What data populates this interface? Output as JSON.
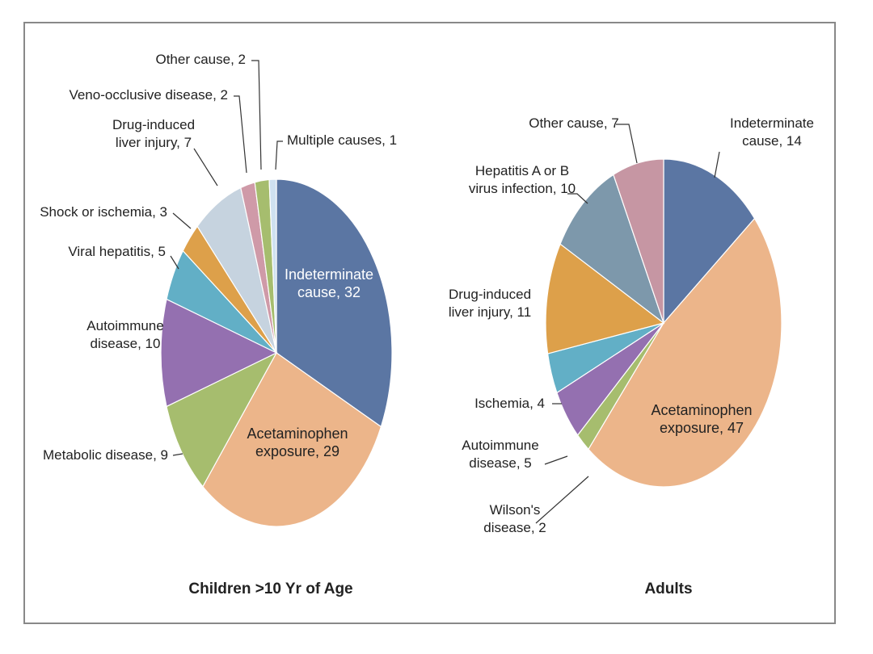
{
  "chart_data": [
    {
      "type": "pie",
      "title": "Children >10 Yr of Age",
      "slices": [
        {
          "label": "Indeterminate cause",
          "value": 32,
          "color": "#5b76a3",
          "text": "Indeterminate\ncause, 32"
        },
        {
          "label": "Acetaminophen exposure",
          "value": 29,
          "color": "#ecb58a",
          "text": "Acetaminophen\nexposure, 29"
        },
        {
          "label": "Metabolic disease",
          "value": 9,
          "color": "#a6bd6e",
          "text": "Metabolic disease, 9"
        },
        {
          "label": "Autoimmune disease",
          "value": 10,
          "color": "#9470b0",
          "text": "Autoimmune\ndisease, 10"
        },
        {
          "label": "Viral hepatitis",
          "value": 5,
          "color": "#62afc6",
          "text": "Viral hepatitis, 5"
        },
        {
          "label": "Shock or ischemia",
          "value": 3,
          "color": "#dda04a",
          "text": "Shock or ischemia, 3"
        },
        {
          "label": "Drug-induced liver injury",
          "value": 7,
          "color": "#c6d3df",
          "text": "Drug-induced\nliver injury, 7"
        },
        {
          "label": "Veno-occlusive disease",
          "value": 2,
          "color": "#cf9aa8",
          "text": "Veno-occlusive disease, 2"
        },
        {
          "label": "Other cause",
          "value": 2,
          "color": "#a6bd6e",
          "text": "Other cause, 2"
        },
        {
          "label": "Multiple causes",
          "value": 1,
          "color": "#cfe1f0",
          "text": "Multiple causes, 1"
        }
      ]
    },
    {
      "type": "pie",
      "title": "Adults",
      "slices": [
        {
          "label": "Indeterminate cause",
          "value": 14,
          "color": "#5b76a3",
          "text": "Indeterminate\ncause, 14"
        },
        {
          "label": "Acetaminophen exposure",
          "value": 47,
          "color": "#ecb58a",
          "text": "Acetaminophen\nexposure, 47"
        },
        {
          "label": "Wilson's disease",
          "value": 2,
          "color": "#a6bd6e",
          "text": "Wilson's\ndisease, 2"
        },
        {
          "label": "Autoimmune disease",
          "value": 5,
          "color": "#9470b0",
          "text": "Autoimmune\ndisease, 5"
        },
        {
          "label": "Ischemia",
          "value": 4,
          "color": "#62afc6",
          "text": "Ischemia, 4"
        },
        {
          "label": "Drug-induced liver injury",
          "value": 11,
          "color": "#dda04a",
          "text": "Drug-induced\nliver injury, 11"
        },
        {
          "label": "Hepatitis A or B virus infection",
          "value": 10,
          "color": "#7d98ab",
          "text": "Hepatitis A or B\nvirus infection, 10"
        },
        {
          "label": "Other cause",
          "value": 7,
          "color": "#c696a3",
          "text": "Other cause, 7"
        }
      ]
    }
  ]
}
